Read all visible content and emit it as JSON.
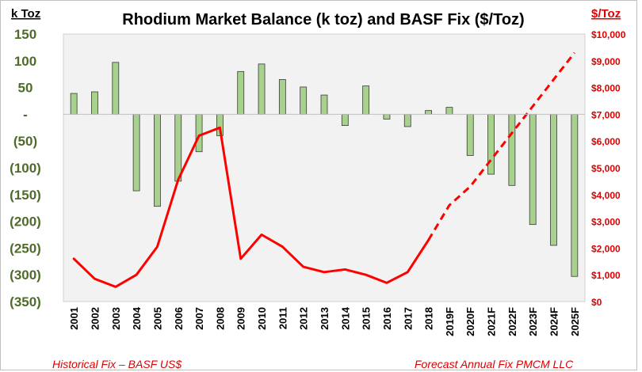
{
  "chart_data": {
    "type": "bar+line",
    "title": "Rhodium Market Balance (k toz) and BASF Fix ($/Toz)",
    "left_axis": {
      "unit_label": "k Toz",
      "range": [
        -350,
        150
      ],
      "ticks": [
        150,
        100,
        50,
        0,
        -50,
        -100,
        -150,
        -200,
        -250,
        -300,
        -350
      ],
      "tick_labels": [
        "150",
        "100",
        "50",
        "-",
        "(50)",
        "(100)",
        "(150)",
        "(200)",
        "(250)",
        "(300)",
        "(350)"
      ]
    },
    "right_axis": {
      "unit_label": "$/Toz",
      "range": [
        0,
        10000
      ],
      "ticks": [
        10000,
        9000,
        8000,
        7000,
        6000,
        5000,
        4000,
        3000,
        2000,
        1000,
        0
      ],
      "tick_labels": [
        "$10,000",
        "$9,000",
        "$8,000",
        "$7,000",
        "$6,000",
        "$5,000",
        "$4,000",
        "$3,000",
        "$2,000",
        "$1,000",
        "$0"
      ]
    },
    "categories": [
      "2001",
      "2002",
      "2003",
      "2004",
      "2005",
      "2006",
      "2007",
      "2008",
      "2009",
      "2010",
      "2011",
      "2012",
      "2013",
      "2014",
      "2015",
      "2016",
      "2017",
      "2018",
      "2019F",
      "2020F",
      "2021F",
      "2022F",
      "2023F",
      "2024F",
      "2025F"
    ],
    "series": [
      {
        "name": "Market Balance (k toz)",
        "type": "bar",
        "axis": "left",
        "color": "#a9d18e",
        "values": [
          39,
          42,
          97,
          -143,
          -172,
          -125,
          -70,
          -40,
          80,
          94,
          65,
          51,
          36,
          -21,
          53,
          -9,
          -23,
          7,
          13,
          -77,
          -112,
          -133,
          -206,
          -245,
          -303
        ]
      },
      {
        "name": "Historical Fix – BASF US$",
        "type": "line",
        "axis": "right",
        "color": "#ff0000",
        "values": [
          1600,
          850,
          550,
          1000,
          2050,
          4550,
          6200,
          6500,
          1600,
          2500,
          2050,
          1300,
          1100,
          1200,
          1000,
          700,
          1100,
          2300,
          null,
          null,
          null,
          null,
          null,
          null,
          null
        ]
      },
      {
        "name": "Forecast Annual Fix PMCM LLC",
        "type": "line",
        "dashed": true,
        "axis": "right",
        "color": "#ff0000",
        "values": [
          null,
          null,
          null,
          null,
          null,
          null,
          null,
          null,
          null,
          null,
          null,
          null,
          null,
          null,
          null,
          null,
          null,
          2300,
          3600,
          4300,
          5300,
          6300,
          7300,
          8300,
          9300
        ]
      }
    ],
    "grid": false
  },
  "footer": {
    "left": "Historical Fix – BASF US$",
    "right": "Forecast Annual Fix PMCM LLC"
  }
}
